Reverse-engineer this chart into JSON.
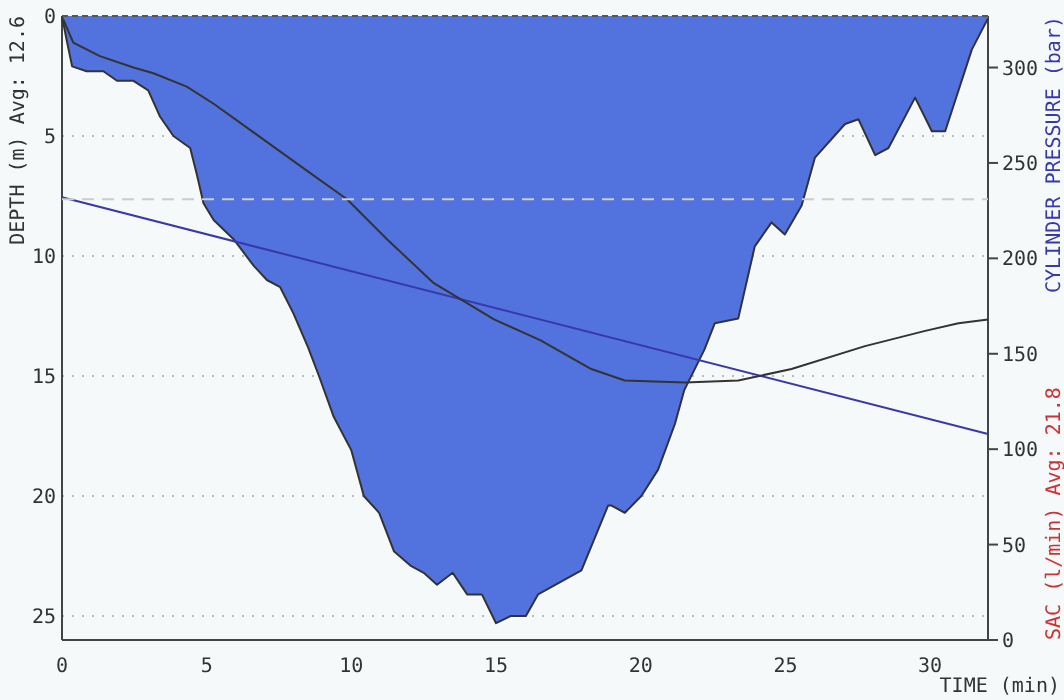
{
  "chart_data": {
    "type": "area",
    "xlabel": "TIME (min)",
    "ylabel": "DEPTH (m) Avg: 12.6",
    "y2label": "CYLINDER PRESSURE (bar)",
    "annotations": [
      "SAC (l/min) Avg: 21.8"
    ],
    "xlim": [
      0,
      32
    ],
    "xticks": [
      0,
      5,
      10,
      15,
      20,
      25,
      30
    ],
    "ylim": [
      26,
      0
    ],
    "yticks": [
      0,
      5,
      10,
      15,
      20,
      25
    ],
    "y2lim": [
      0,
      327
    ],
    "y2ticks": [
      0,
      50,
      100,
      150,
      200,
      250,
      300
    ],
    "grid": "y",
    "ref_lines": [
      {
        "axis": "y2",
        "value": 231,
        "color": "#cccccc",
        "line_style": "dashed"
      }
    ],
    "series": [
      {
        "color": "#5273dd",
        "x": [
          0,
          0.16,
          0.35,
          0.85,
          1.43,
          1.9,
          2.47,
          2.98,
          3.39,
          3.85,
          4.43,
          4.66,
          4.89,
          5.24,
          5.93,
          6.62,
          7.08,
          7.54,
          8,
          8.5,
          8.88,
          9.39,
          10,
          10.43,
          10.96,
          11.47,
          12.04,
          12.5,
          12.96,
          13.5,
          14,
          14.51,
          15,
          15.5,
          16.03,
          16.45,
          17.95,
          18.87,
          18.99,
          19.45,
          20.02,
          20.6,
          21.18,
          21.5,
          22.2,
          22.56,
          23.37,
          23.94,
          24.52,
          24.98,
          25.56,
          26.02,
          27.06,
          27.52,
          28.1,
          28.56,
          29.48,
          30.06,
          30.52,
          31.44,
          32
        ],
        "values": [
          0,
          1,
          2.1,
          2.3,
          2.3,
          2.7,
          2.7,
          3.1,
          4.2,
          5,
          5.5,
          6.6,
          7.8,
          8.5,
          9.3,
          10.4,
          11,
          11.3,
          12.4,
          13.8,
          15,
          16.7,
          18.1,
          20,
          20.7,
          22.3,
          22.9,
          23.2,
          23.7,
          23.2,
          24.1,
          24.1,
          25.3,
          25,
          25,
          24.1,
          23.1,
          20.4,
          20.4,
          20.7,
          20,
          18.9,
          17,
          15.6,
          13.9,
          12.8,
          12.6,
          9.6,
          8.6,
          9.1,
          7.9,
          5.9,
          4.5,
          4.3,
          5.8,
          5.5,
          3.4,
          4.8,
          4.8,
          1.4,
          0.1
        ]
      },
      {
        "type": "line",
        "axis": "y2",
        "color": "#3838a8",
        "x": [
          0,
          32
        ],
        "values": [
          232,
          108
        ]
      },
      {
        "type": "line",
        "axis": "y2",
        "color": "#333333",
        "x": [
          0.05,
          0.39,
          1.31,
          2.47,
          3.16,
          4.31,
          5.24,
          6.62,
          8.46,
          9.85,
          11.23,
          12.85,
          14.93,
          16.54,
          18.29,
          19.45,
          21.52,
          23.37,
          25.21,
          27.75,
          29.83,
          30.98,
          32
        ],
        "values": [
          325,
          313,
          306,
          300,
          297,
          290,
          281,
          266,
          246,
          231,
          210,
          187,
          168,
          157,
          142,
          136,
          135,
          136,
          142,
          154,
          162,
          166,
          168
        ]
      }
    ]
  }
}
